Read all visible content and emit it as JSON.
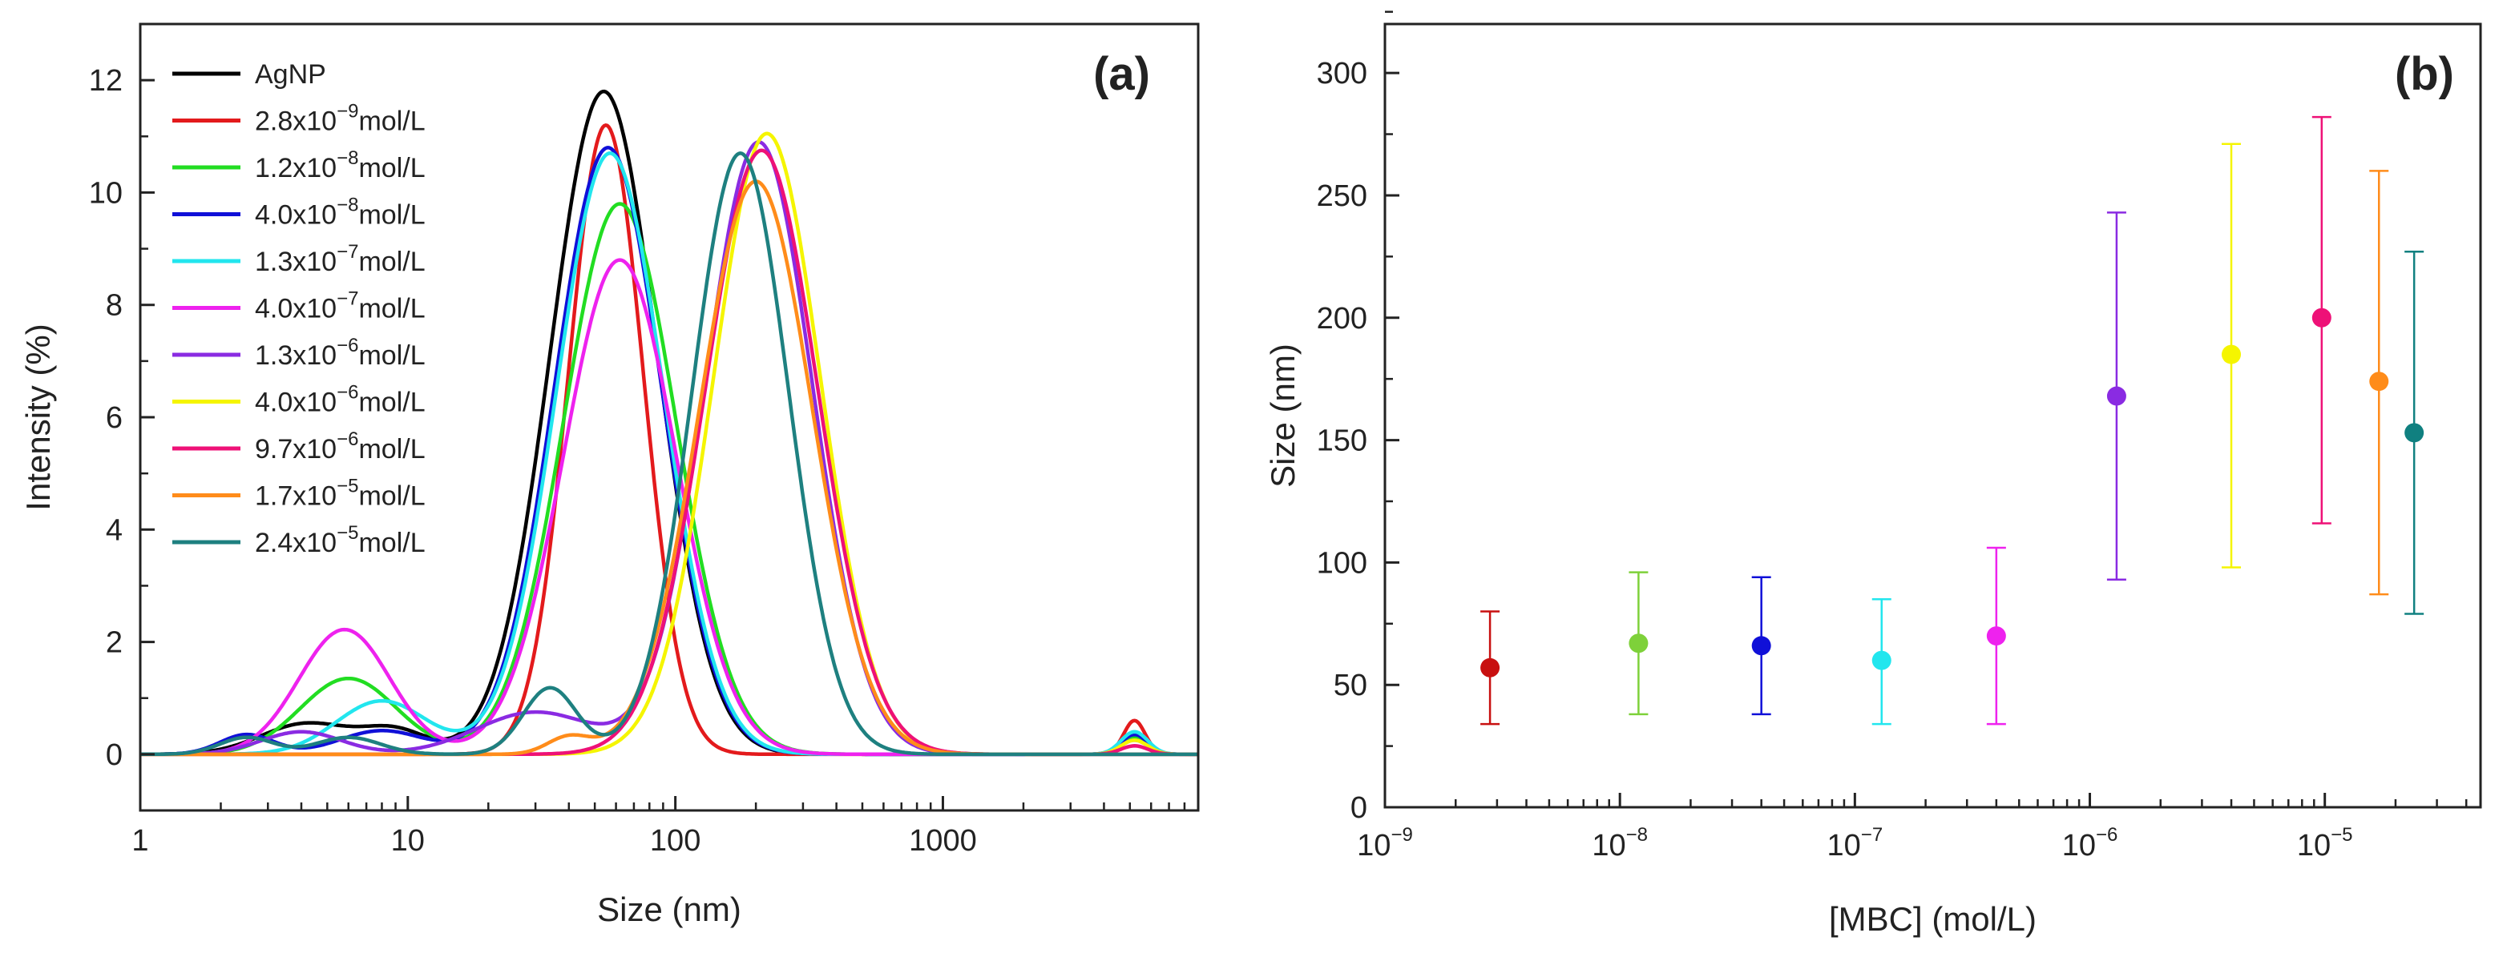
{
  "colors": {
    "AgNP": "#000000",
    "c1": "#e31a1c",
    "c2": "#22dd22",
    "c3": "#1010d8",
    "c4": "#22e6ee",
    "c5": "#ee22ee",
    "c6": "#8a2be2",
    "c7": "#f5f500",
    "c8": "#ee1177",
    "c9": "#ff8c1a",
    "c10": "#1e8080"
  },
  "chart_data": [
    {
      "type": "line",
      "panel_label": "(a)",
      "xlabel": "Size (nm)",
      "ylabel": "Intensity (%)",
      "xscale": "log",
      "xlim": [
        1,
        9000
      ],
      "ylim": [
        -1,
        13
      ],
      "x_ticks": [
        {
          "value": 1,
          "label": "1"
        },
        {
          "value": 10,
          "label": "10"
        },
        {
          "value": 100,
          "label": "100"
        },
        {
          "value": 1000,
          "label": "1000"
        }
      ],
      "y_ticks": [
        {
          "value": 0,
          "label": "0"
        },
        {
          "value": 2,
          "label": "2"
        },
        {
          "value": 4,
          "label": "4"
        },
        {
          "value": 6,
          "label": "6"
        },
        {
          "value": 8,
          "label": "8"
        },
        {
          "value": 10,
          "label": "10"
        },
        {
          "value": 12,
          "label": "12"
        }
      ],
      "legend_position": "top-left",
      "series": [
        {
          "name": "AgNP",
          "mantissa": "AgNP",
          "exponent": "",
          "unit": "",
          "color_key": "AgNP",
          "peaks": [
            [
              4.2,
              0.55,
              0.17
            ],
            [
              9,
              0.4,
              0.12
            ],
            [
              54,
              11.8,
              0.2
            ]
          ]
        },
        {
          "name": "2.8x10⁻⁹mol/L",
          "mantissa": "2.8x10",
          "exponent": "−9",
          "unit": "mol/L",
          "color_key": "c1",
          "peaks": [
            [
              55,
              11.2,
              0.14
            ],
            [
              5200,
              0.6,
              0.04
            ]
          ]
        },
        {
          "name": "1.2x10⁻⁸mol/L",
          "mantissa": "1.2x10",
          "exponent": "−8",
          "unit": "mol/L",
          "color_key": "c2",
          "peaks": [
            [
              6,
              1.35,
              0.18
            ],
            [
              62,
              9.8,
              0.21
            ],
            [
              5200,
              0.3,
              0.05
            ]
          ]
        },
        {
          "name": "4.0x10⁻⁸mol/L",
          "mantissa": "4.0x10",
          "exponent": "−8",
          "unit": "mol/L",
          "color_key": "c3",
          "peaks": [
            [
              2.5,
              0.35,
              0.1
            ],
            [
              8,
              0.42,
              0.16
            ],
            [
              56,
              10.8,
              0.2
            ],
            [
              5200,
              0.35,
              0.05
            ]
          ]
        },
        {
          "name": "1.3x10⁻⁷mol/L",
          "mantissa": "1.3x10",
          "exponent": "−7",
          "unit": "mol/L",
          "color_key": "c4",
          "peaks": [
            [
              8,
              0.95,
              0.17
            ],
            [
              57,
              10.7,
              0.2
            ],
            [
              5200,
              0.4,
              0.05
            ]
          ]
        },
        {
          "name": "4.0x10⁻⁷mol/L",
          "mantissa": "4.0x10",
          "exponent": "−7",
          "unit": "mol/L",
          "color_key": "c5",
          "peaks": [
            [
              5.8,
              2.22,
              0.17
            ],
            [
              62,
              8.8,
              0.21
            ],
            [
              5200,
              0.25,
              0.05
            ]
          ]
        },
        {
          "name": "1.3x10⁻⁶mol/L",
          "mantissa": "1.3x10",
          "exponent": "−6",
          "unit": "mol/L",
          "color_key": "c6",
          "peaks": [
            [
              4,
              0.4,
              0.15
            ],
            [
              30,
              0.75,
              0.22
            ],
            [
              205,
              10.9,
              0.2
            ]
          ]
        },
        {
          "name": "4.0x10⁻⁶mol/L",
          "mantissa": "4.0x10",
          "exponent": "−6",
          "unit": "mol/L",
          "color_key": "c7",
          "peaks": [
            [
              220,
              11.05,
              0.2
            ],
            [
              5200,
              0.25,
              0.05
            ]
          ]
        },
        {
          "name": "9.7x10⁻⁶mol/L",
          "mantissa": "9.7x10",
          "exponent": "−6",
          "unit": "mol/L",
          "color_key": "c8",
          "peaks": [
            [
              210,
              10.75,
              0.21
            ],
            [
              5200,
              0.15,
              0.05
            ]
          ]
        },
        {
          "name": "1.7x10⁻⁵mol/L",
          "mantissa": "1.7x10",
          "exponent": "−5",
          "unit": "mol/L",
          "color_key": "c9",
          "peaks": [
            [
              40,
              0.3,
              0.08
            ],
            [
              200,
              10.2,
              0.21
            ]
          ]
        },
        {
          "name": "2.4x10⁻⁵mol/L",
          "mantissa": "2.4x10",
          "exponent": "−5",
          "unit": "mol/L",
          "color_key": "c10",
          "peaks": [
            [
              2.5,
              0.3,
              0.1
            ],
            [
              6,
              0.3,
              0.12
            ],
            [
              34,
              1.18,
              0.1
            ],
            [
              175,
              10.7,
              0.18
            ]
          ]
        }
      ]
    },
    {
      "type": "scatter",
      "panel_label": "(b)",
      "xlabel": "[MBC] (mol/L)",
      "ylabel": "Size (nm)",
      "xscale": "log",
      "xlim": [
        1e-09,
        4.6e-05
      ],
      "ylim": [
        0,
        320
      ],
      "x_ticks": [
        {
          "value": 1e-09,
          "mantissa": "10",
          "exponent": "−9"
        },
        {
          "value": 1e-08,
          "mantissa": "10",
          "exponent": "−8"
        },
        {
          "value": 1e-07,
          "mantissa": "10",
          "exponent": "−7"
        },
        {
          "value": 1e-06,
          "mantissa": "10",
          "exponent": "−6"
        },
        {
          "value": 1e-05,
          "mantissa": "10",
          "exponent": "−5"
        }
      ],
      "y_ticks": [
        {
          "value": 0,
          "label": "0"
        },
        {
          "value": 50,
          "label": "50"
        },
        {
          "value": 100,
          "label": "100"
        },
        {
          "value": 150,
          "label": "150"
        },
        {
          "value": 200,
          "label": "200"
        },
        {
          "value": 250,
          "label": "250"
        },
        {
          "value": 300,
          "label": "300"
        }
      ],
      "points": [
        {
          "x": 2.8e-09,
          "y": 57,
          "low": 34,
          "high": 80,
          "color": "#c81010"
        },
        {
          "x": 1.2e-08,
          "y": 67,
          "low": 38,
          "high": 96,
          "color": "#7ed13a"
        },
        {
          "x": 4e-08,
          "y": 66,
          "low": 38,
          "high": 94,
          "color": "#1010d8"
        },
        {
          "x": 1.3e-07,
          "y": 60,
          "low": 34,
          "high": 85,
          "color": "#22e6ee"
        },
        {
          "x": 4e-07,
          "y": 70,
          "low": 34,
          "high": 106,
          "color": "#ee22ee"
        },
        {
          "x": 1.3e-06,
          "y": 168,
          "low": 93,
          "high": 243,
          "color": "#8a2be2"
        },
        {
          "x": 4e-06,
          "y": 185,
          "low": 98,
          "high": 271,
          "color": "#f5f500"
        },
        {
          "x": 9.7e-06,
          "y": 200,
          "low": 116,
          "high": 282,
          "color": "#ee1177"
        },
        {
          "x": 1.7e-05,
          "y": 174,
          "low": 87,
          "high": 260,
          "color": "#ff8c1a"
        },
        {
          "x": 2.4e-05,
          "y": 153,
          "low": 79,
          "high": 227,
          "color": "#108080"
        }
      ]
    }
  ]
}
